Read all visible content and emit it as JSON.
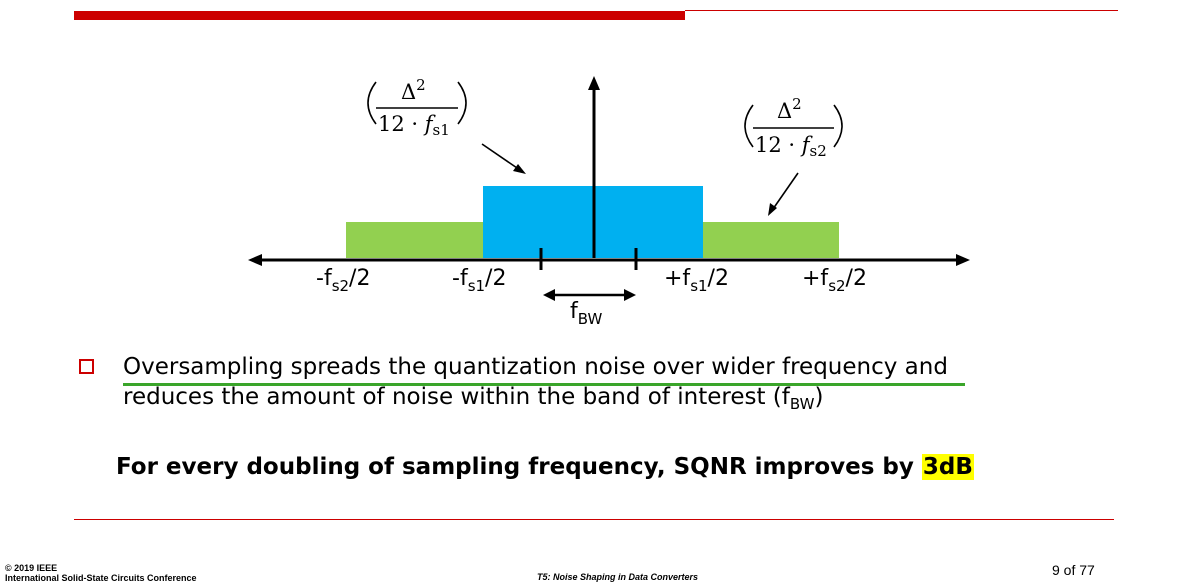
{
  "colors": {
    "accent_red": "#cc0000",
    "noise_blue": "#00b0f0",
    "noise_green": "#92d050",
    "underline_green": "#3aa52a",
    "highlight_yellow": "#ffff00"
  },
  "diagram": {
    "labels": {
      "neg_fs2": "-f",
      "neg_fs2_sub": "s2",
      "neg_fs2_suffix": "/2",
      "neg_fs1": "-f",
      "neg_fs1_sub": "s1",
      "neg_fs1_suffix": "/2",
      "pos_fs1": "+f",
      "pos_fs1_sub": "s1",
      "pos_fs1_suffix": "/2",
      "pos_fs2": "+f",
      "pos_fs2_sub": "s2",
      "pos_fs2_suffix": "/2",
      "fbw": "f",
      "fbw_sub": "BW"
    },
    "formula_1": {
      "numerator": "Δ",
      "exponent": "2",
      "denominator": "12 · ",
      "var": "f",
      "var_sub": "s1"
    },
    "formula_2": {
      "numerator": "Δ",
      "exponent": "2",
      "denominator": "12 · ",
      "var": "f",
      "var_sub": "s2"
    }
  },
  "bullet": {
    "line1": "Oversampling spreads the quantization noise over wider frequency and",
    "line2": "reduces the amount of noise within the band of interest (f",
    "line2_sub": "BW",
    "line2_end": ")"
  },
  "highlight": {
    "text": "For every doubling of sampling frequency, SQNR improves by ",
    "value": "3dB"
  },
  "footer": {
    "copyright_line1": "© 2019 IEEE",
    "copyright_line2": "International Solid-State Circuits Conference",
    "title": "T5: Noise Shaping in Data Converters",
    "page": "9 of 77"
  }
}
